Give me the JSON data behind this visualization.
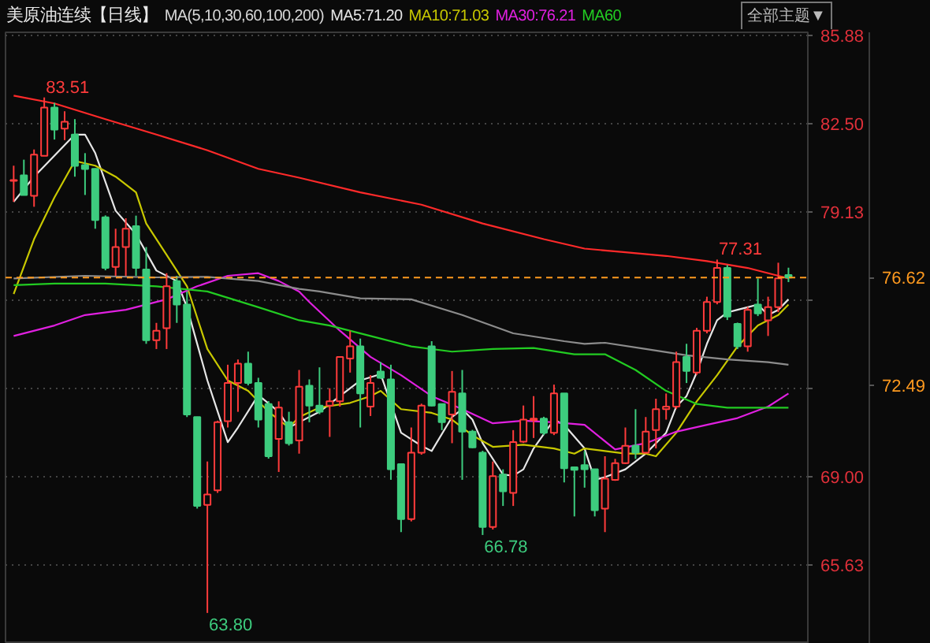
{
  "chart_data": {
    "type": "candlestick",
    "title": "美原油连续【日线】",
    "subtitle": "MA(5,10,30,60,100,200)",
    "grid": "y",
    "tick_labels": "y",
    "categories": [
      null,
      null,
      null,
      null,
      null,
      null,
      null,
      null,
      null,
      null,
      null,
      null,
      null,
      null,
      null,
      null,
      null,
      null,
      null,
      null,
      null,
      null,
      null,
      null,
      null,
      null,
      null,
      null,
      null,
      null,
      null,
      null,
      null,
      null,
      null,
      null,
      null,
      null,
      null,
      null,
      null,
      null,
      null,
      null,
      null,
      null,
      null,
      null,
      null,
      null,
      null,
      null,
      null,
      null,
      null,
      null,
      null,
      null,
      null,
      null,
      null,
      null,
      null,
      null,
      null,
      null,
      null,
      null,
      null,
      null,
      null,
      null,
      null,
      null,
      null,
      null,
      null
    ],
    "ylim": [
      62.62,
      86.0
    ],
    "yticks": [
      85.88,
      {
        "value": 82.5,
        "label": "82.50"
      },
      79.13,
      {
        "value": 75.75,
        "label": null
      },
      {
        "value": 72.38,
        "label": null
      },
      {
        "value": 69.0,
        "label": "69.00"
      },
      65.63
    ],
    "ohlc": [
      [
        80.32,
        80.9,
        79.52,
        80.35
      ],
      [
        80.53,
        81.13,
        79.78,
        79.78
      ],
      [
        79.75,
        81.52,
        79.33,
        81.32
      ],
      [
        81.28,
        83.51,
        81.28,
        83.12
      ],
      [
        83.12,
        83.3,
        81.9,
        82.28
      ],
      [
        82.32,
        82.98,
        81.88,
        82.58
      ],
      [
        82.09,
        82.68,
        80.48,
        80.89
      ],
      [
        80.92,
        81.38,
        79.78,
        80.77
      ],
      [
        80.78,
        80.8,
        78.49,
        78.82
      ],
      [
        78.93,
        79.0,
        76.9,
        76.99
      ],
      [
        77.03,
        78.49,
        76.69,
        77.79
      ],
      [
        77.79,
        78.89,
        76.69,
        78.49
      ],
      [
        78.59,
        78.99,
        76.69,
        76.99
      ],
      [
        76.93,
        77.79,
        74.09,
        74.23
      ],
      [
        74.23,
        74.89,
        73.89,
        74.59
      ],
      [
        74.69,
        76.79,
        73.89,
        76.29
      ],
      [
        76.49,
        76.69,
        74.89,
        75.59
      ],
      [
        75.59,
        76.09,
        71.29,
        71.39
      ],
      [
        71.29,
        71.3,
        67.79,
        67.89
      ],
      [
        67.93,
        69.59,
        63.8,
        68.33
      ],
      [
        68.49,
        71.15,
        68.39,
        71.09
      ],
      [
        71.13,
        73.29,
        70.89,
        72.59
      ],
      [
        72.59,
        73.49,
        71.49,
        73.33
      ],
      [
        73.33,
        73.79,
        72.5,
        72.59
      ],
      [
        72.59,
        72.79,
        70.89,
        71.19
      ],
      [
        71.79,
        71.9,
        69.7,
        69.79
      ],
      [
        70.45,
        71.89,
        69.19,
        71.65
      ],
      [
        71.09,
        71.49,
        70.2,
        70.29
      ],
      [
        70.39,
        73.09,
        69.89,
        72.45
      ],
      [
        72.49,
        72.73,
        71.09,
        71.73
      ],
      [
        71.73,
        73.19,
        71.4,
        71.49
      ],
      [
        71.73,
        72.39,
        70.53,
        71.89
      ],
      [
        71.89,
        73.6,
        71.69,
        73.59
      ],
      [
        73.53,
        74.59,
        72.99,
        73.99
      ],
      [
        73.99,
        74.29,
        70.89,
        72.19
      ],
      [
        71.69,
        72.89,
        71.33,
        72.59
      ],
      [
        73.03,
        73.39,
        72.75,
        72.79
      ],
      [
        72.73,
        73.29,
        68.89,
        69.29
      ],
      [
        69.49,
        69.5,
        66.89,
        67.39
      ],
      [
        67.39,
        70.89,
        67.3,
        69.93
      ],
      [
        69.93,
        71.8,
        69.85,
        71.73
      ],
      [
        73.99,
        74.19,
        71.7,
        71.73
      ],
      [
        71.79,
        71.8,
        70.79,
        71.09
      ],
      [
        71.39,
        73.05,
        70.29,
        72.25
      ],
      [
        72.19,
        73.09,
        68.89,
        70.73
      ],
      [
        70.73,
        70.8,
        70.1,
        70.13
      ],
      [
        69.93,
        70.0,
        66.78,
        67.09
      ],
      [
        67.09,
        69.59,
        66.99,
        69.03
      ],
      [
        69.09,
        69.29,
        67.89,
        68.45
      ],
      [
        68.39,
        70.79,
        67.89,
        70.33
      ],
      [
        70.35,
        71.73,
        70.3,
        71.19
      ],
      [
        71.17,
        72.09,
        70.49,
        71.23
      ],
      [
        71.23,
        71.3,
        70.6,
        70.69
      ],
      [
        70.69,
        72.53,
        70.6,
        72.19
      ],
      [
        72.19,
        72.2,
        68.79,
        69.33
      ],
      [
        69.37,
        69.4,
        67.49,
        69.27
      ],
      [
        69.45,
        69.99,
        68.59,
        69.29
      ],
      [
        69.29,
        69.3,
        67.49,
        67.73
      ],
      [
        67.79,
        69.79,
        66.89,
        68.93
      ],
      [
        68.89,
        69.69,
        68.85,
        69.53
      ],
      [
        69.53,
        70.89,
        69.5,
        70.19
      ],
      [
        70.19,
        71.59,
        69.69,
        69.93
      ],
      [
        69.93,
        71.29,
        69.9,
        70.73
      ],
      [
        70.79,
        71.99,
        70.09,
        71.59
      ],
      [
        71.59,
        72.19,
        71.19,
        71.69
      ],
      [
        71.69,
        73.79,
        71.6,
        73.39
      ],
      [
        73.59,
        74.09,
        72.59,
        73.05
      ],
      [
        72.99,
        74.7,
        72.9,
        74.59
      ],
      [
        74.59,
        75.89,
        74.49,
        75.69
      ],
      [
        75.69,
        77.31,
        75.6,
        76.99
      ],
      [
        76.99,
        77.1,
        75.0,
        75.13
      ],
      [
        74.85,
        74.9,
        73.89,
        73.99
      ],
      [
        73.99,
        75.5,
        73.79,
        75.39
      ],
      [
        75.59,
        76.59,
        75.15,
        75.25
      ],
      [
        74.99,
        75.89,
        74.39,
        75.49
      ],
      [
        75.49,
        77.19,
        75.3,
        76.59
      ],
      [
        76.72,
        77.0,
        76.45,
        76.62
      ]
    ],
    "colors": [
      "#ff3b3b",
      "#3dcc7e",
      "#ff3b3b",
      "#ff3b3b",
      "#3dcc7e",
      "#ff3b3b",
      "#3dcc7e",
      "#3dcc7e",
      "#3dcc7e",
      "#3dcc7e",
      "#ff3b3b",
      "#ff3b3b",
      "#3dcc7e",
      "#3dcc7e",
      "#ff3b3b",
      "#ff3b3b",
      "#3dcc7e",
      "#3dcc7e",
      "#3dcc7e",
      "#ff3b3b",
      "#ff3b3b",
      "#ff3b3b",
      "#ff3b3b",
      "#3dcc7e",
      "#3dcc7e",
      "#3dcc7e",
      "#ff3b3b",
      "#3dcc7e",
      "#ff3b3b",
      "#3dcc7e",
      "#3dcc7e",
      "#ff3b3b",
      "#ff3b3b",
      "#ff3b3b",
      "#3dcc7e",
      "#ff3b3b",
      "#3dcc7e",
      "#3dcc7e",
      "#3dcc7e",
      "#ff3b3b",
      "#ff3b3b",
      "#3dcc7e",
      "#3dcc7e",
      "#ff3b3b",
      "#3dcc7e",
      "#3dcc7e",
      "#3dcc7e",
      "#ff3b3b",
      "#3dcc7e",
      "#ff3b3b",
      "#ff3b3b",
      "#ff3b3b",
      "#3dcc7e",
      "#ff3b3b",
      "#3dcc7e",
      "#3dcc7e",
      "#3dcc7e",
      "#3dcc7e",
      "#ff3b3b",
      "#ff3b3b",
      "#ff3b3b",
      "#3dcc7e",
      "#ff3b3b",
      "#ff3b3b",
      "#ff3b3b",
      "#ff3b3b",
      "#3dcc7e",
      "#ff3b3b",
      "#ff3b3b",
      "#ff3b3b",
      "#3dcc7e",
      "#3dcc7e",
      "#ff3b3b",
      "#3dcc7e",
      "#ff3b3b",
      "#ff3b3b",
      "#3dcc7e"
    ],
    "series": [
      {
        "name": "MA5:71.20",
        "type": "line",
        "color": "#e6e6e6",
        "values": [
          79.52,
          null,
          80.48,
          null,
          null,
          null,
          82.09,
          82.09,
          81.38,
          null,
          79.18,
          null,
          78.28,
          null,
          76.89,
          null,
          76.49,
          75.49,
          null,
          72.69,
          null,
          70.33,
          70.89,
          null,
          72.13,
          null,
          71.49,
          70.89,
          71.09,
          null,
          71.49,
          null,
          72.09,
          null,
          72.69,
          null,
          72.93,
          null,
          70.69,
          null,
          70.19,
          69.99,
          null,
          71.29,
          71.59,
          71.19,
          70.29,
          null,
          69.09,
          69.05,
          69.29,
          70.09,
          null,
          71.19,
          70.99,
          null,
          70.09,
          68.89,
          68.99,
          null,
          69.29,
          null,
          69.89,
          null,
          70.69,
          71.69,
          72.09,
          72.99,
          74.09,
          74.99,
          75.29,
          75.39,
          75.49,
          75.59,
          75.19,
          75.39,
          75.79
        ]
      },
      {
        "name": "MA10:71.03",
        "type": "line",
        "color": "#c8c800",
        "values": [
          75.99,
          null,
          78.09,
          null,
          79.69,
          null,
          81.08,
          null,
          80.9,
          null,
          80.48,
          null,
          79.88,
          78.69,
          null,
          77.49,
          null,
          76.29,
          null,
          73.89,
          null,
          72.69,
          null,
          72.29,
          null,
          71.49,
          null,
          70.89,
          71.29,
          null,
          71.65,
          null,
          null,
          71.83,
          null,
          72.09,
          72.29,
          null,
          71.59,
          null,
          null,
          71.45,
          null,
          71.19,
          null,
          70.59,
          null,
          70.15,
          null,
          null,
          70.23,
          null,
          null,
          70.09,
          null,
          69.89,
          70.09,
          null,
          69.99,
          null,
          69.89,
          null,
          69.89,
          69.79,
          null,
          70.69,
          null,
          71.89,
          null,
          72.89,
          null,
          73.99,
          null,
          74.79,
          null,
          75.19,
          75.59
        ]
      },
      {
        "name": "MA30:76.21",
        "type": "line",
        "color": "#e020e0",
        "values": [
          74.39,
          null,
          null,
          null,
          74.79,
          null,
          null,
          75.19,
          null,
          null,
          null,
          75.39,
          null,
          null,
          null,
          75.79,
          null,
          null,
          76.29,
          null,
          null,
          76.69,
          null,
          null,
          76.79,
          null,
          76.49,
          null,
          76.09,
          75.69,
          null,
          null,
          74.59,
          null,
          null,
          73.59,
          null,
          null,
          72.89,
          null,
          null,
          72.09,
          null,
          null,
          71.59,
          null,
          null,
          71.05,
          null,
          null,
          71.15,
          null,
          null,
          71.09,
          null,
          null,
          70.99,
          null,
          null,
          70.05,
          null,
          null,
          70.29,
          null,
          null,
          70.73,
          null,
          null,
          70.99,
          null,
          null,
          71.25,
          null,
          null,
          71.69,
          null,
          72.19
        ]
      },
      {
        "name": "MA60",
        "type": "line",
        "color": "#22cc22",
        "values": [
          76.33,
          null,
          null,
          null,
          76.39,
          null,
          null,
          null,
          null,
          76.39,
          null,
          null,
          null,
          null,
          76.29,
          null,
          null,
          null,
          null,
          76.09,
          null,
          null,
          null,
          null,
          75.49,
          null,
          null,
          null,
          74.99,
          null,
          null,
          74.79,
          null,
          null,
          null,
          74.39,
          null,
          null,
          null,
          73.99,
          null,
          null,
          null,
          73.79,
          null,
          null,
          null,
          73.89,
          null,
          null,
          null,
          73.93,
          null,
          null,
          null,
          73.69,
          null,
          null,
          73.69,
          null,
          null,
          73.09,
          null,
          null,
          72.29,
          null,
          null,
          71.79,
          null,
          null,
          71.65,
          null,
          null,
          71.65,
          null,
          null,
          71.65
        ]
      },
      {
        "type": "line",
        "color": "#8c8c8c",
        "values": [
          76.59,
          null,
          null,
          null,
          null,
          null,
          null,
          76.69,
          null,
          null,
          null,
          null,
          null,
          null,
          76.63,
          null,
          null,
          null,
          null,
          76.65,
          null,
          null,
          null,
          null,
          76.49,
          null,
          null,
          null,
          76.19,
          null,
          76.09,
          null,
          null,
          null,
          75.83,
          null,
          null,
          null,
          null,
          75.79,
          null,
          null,
          null,
          null,
          75.19,
          null,
          null,
          null,
          null,
          74.49,
          null,
          null,
          null,
          null,
          74.19,
          null,
          74.09,
          null,
          74.13,
          null,
          null,
          null,
          73.89,
          null,
          null,
          null,
          73.65,
          null,
          null,
          null,
          73.49,
          null,
          null,
          null,
          73.39,
          null,
          73.29
        ]
      },
      {
        "type": "line",
        "color": "#ff2a2a",
        "values": [
          83.58,
          null,
          null,
          null,
          83.28,
          null,
          null,
          null,
          null,
          82.68,
          null,
          null,
          null,
          null,
          82.09,
          null,
          null,
          null,
          null,
          81.49,
          null,
          null,
          null,
          null,
          80.78,
          null,
          null,
          null,
          80.44,
          null,
          null,
          null,
          null,
          null,
          79.88,
          null,
          null,
          null,
          null,
          null,
          79.41,
          null,
          null,
          null,
          null,
          null,
          78.69,
          null,
          null,
          null,
          null,
          null,
          78.09,
          null,
          null,
          null,
          77.73,
          null,
          null,
          null,
          77.59,
          null,
          null,
          null,
          77.45,
          null,
          null,
          null,
          77.25,
          null,
          null,
          null,
          76.99,
          null,
          null,
          76.69,
          76.59
        ]
      }
    ],
    "ref_lines": [
      {
        "axis": "y",
        "value": 76.62,
        "label": "76.62",
        "color": "#ff9a1f",
        "line_style": "dashed"
      }
    ],
    "annotations": [
      "全部主题▼",
      "83.51",
      "63.80",
      "66.78",
      "77.31",
      "72.49"
    ]
  }
}
